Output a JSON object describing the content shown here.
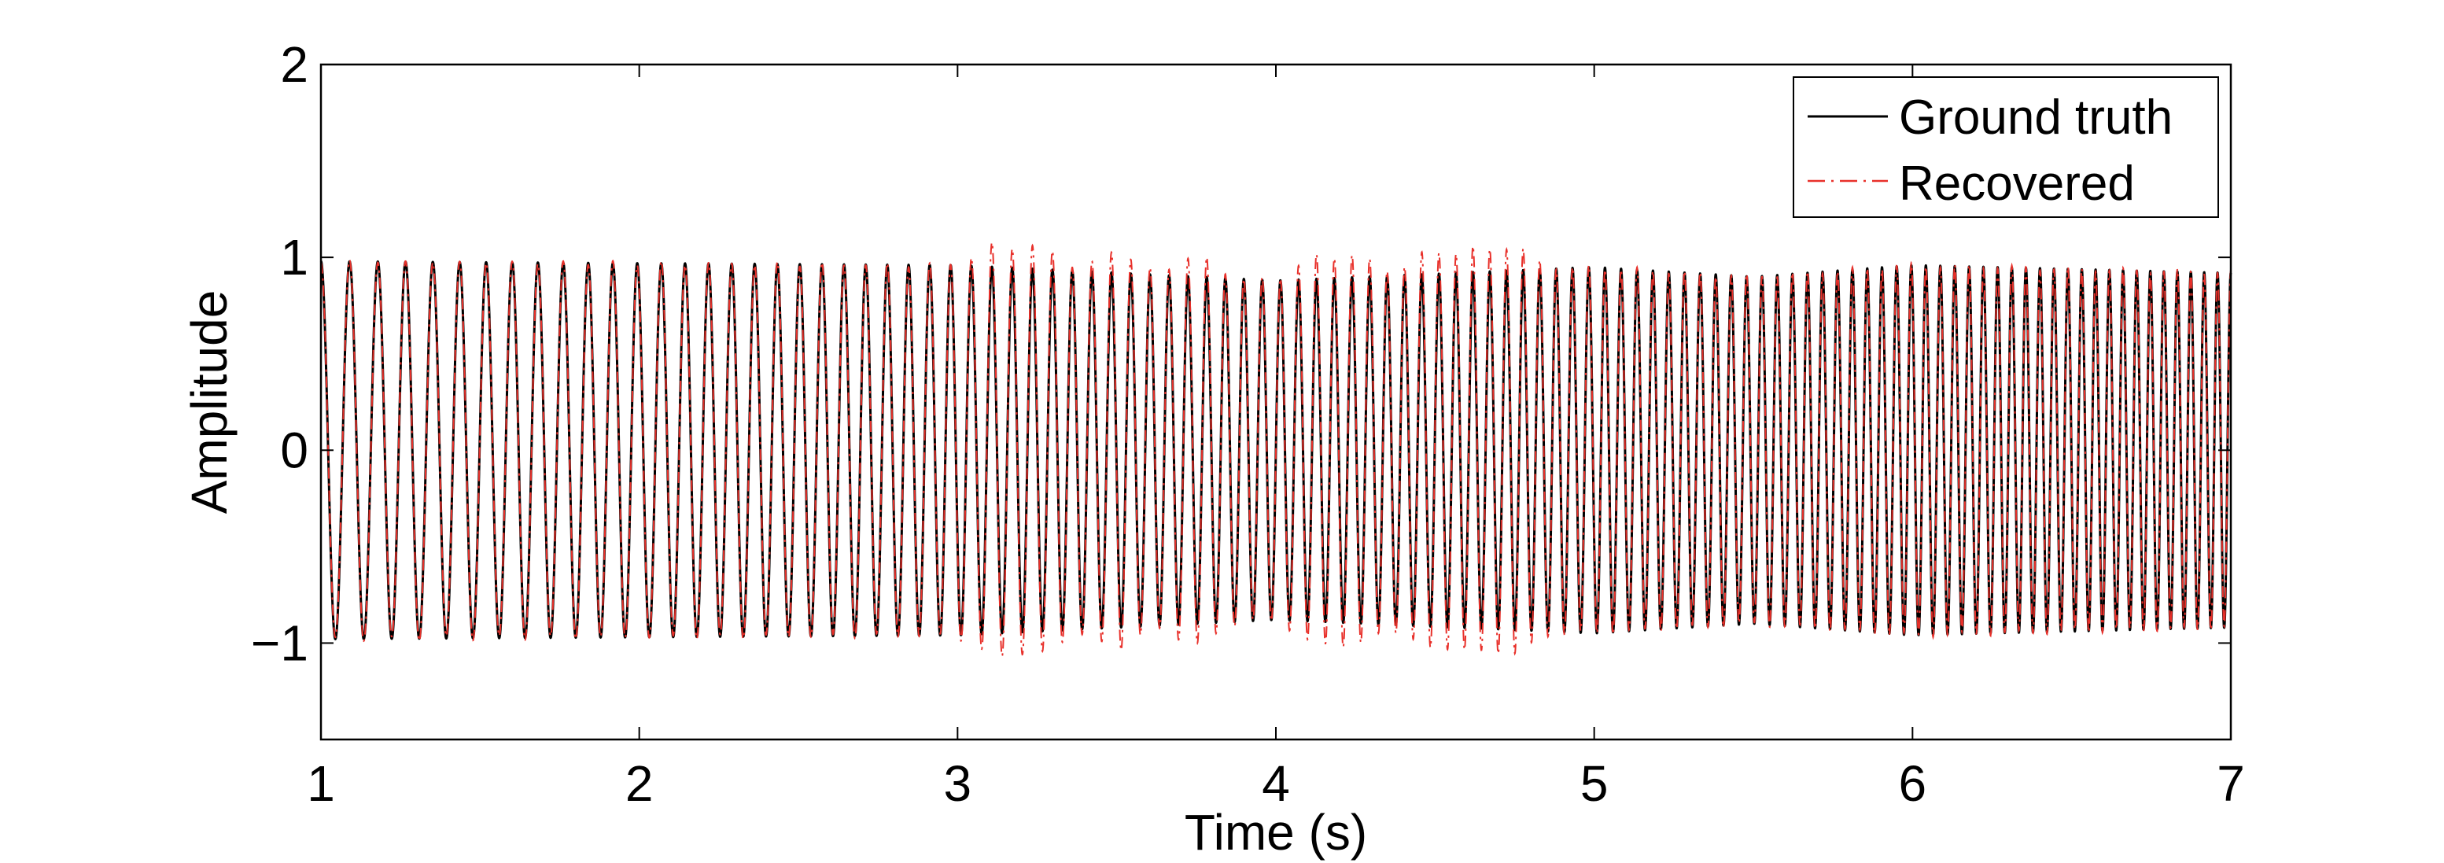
{
  "chart_data": {
    "type": "line",
    "title": "",
    "xlabel": "Time (s)",
    "ylabel": "Amplitude",
    "xlim": [
      1,
      7
    ],
    "ylim": [
      -1.5,
      2
    ],
    "xticks": [
      1,
      2,
      3,
      4,
      5,
      6,
      7
    ],
    "xtick_labels": [
      "1",
      "2",
      "3",
      "4",
      "5",
      "6",
      "7"
    ],
    "yticks": [
      -1,
      0,
      1,
      2
    ],
    "ytick_labels": [
      "−1",
      "0",
      "1",
      "2"
    ],
    "grid": false,
    "legend": {
      "placement": "top-right",
      "entries": [
        {
          "name": "Ground truth",
          "color": "#000000",
          "style": "solid"
        },
        {
          "name": "Recovered",
          "color": "#e8302a",
          "style": "dash-dot"
        }
      ]
    },
    "series": [
      {
        "name": "Ground truth",
        "color": "#000000",
        "style": "solid",
        "model": "unit-amplitude chirp",
        "frequency_hz": {
          "at_t_1": 11,
          "at_t_7": 24
        },
        "amplitude_envelope": [
          {
            "t": 1,
            "a": 0.98
          },
          {
            "t": 3,
            "a": 0.96
          },
          {
            "t": 4,
            "a": 0.88
          },
          {
            "t": 5,
            "a": 0.95
          },
          {
            "t": 5.5,
            "a": 0.9
          },
          {
            "t": 6,
            "a": 0.96
          },
          {
            "t": 7,
            "a": 0.92
          }
        ]
      },
      {
        "name": "Recovered",
        "color": "#e8302a",
        "style": "dash-dot",
        "model": "follows ground truth with overshoot",
        "overshoot_peaks": [
          {
            "t": 3.12,
            "y": 1.08
          },
          {
            "t": 3.26,
            "y": -1.14
          },
          {
            "t": 3.5,
            "y": 1.07
          },
          {
            "t": 3.75,
            "y": -1.1
          },
          {
            "t": 4.12,
            "y": 1.09
          },
          {
            "t": 4.25,
            "y": -1.12
          },
          {
            "t": 4.48,
            "y": 1.07
          },
          {
            "t": 4.62,
            "y": -1.1
          },
          {
            "t": 4.75,
            "y": 1.06
          }
        ]
      }
    ]
  }
}
